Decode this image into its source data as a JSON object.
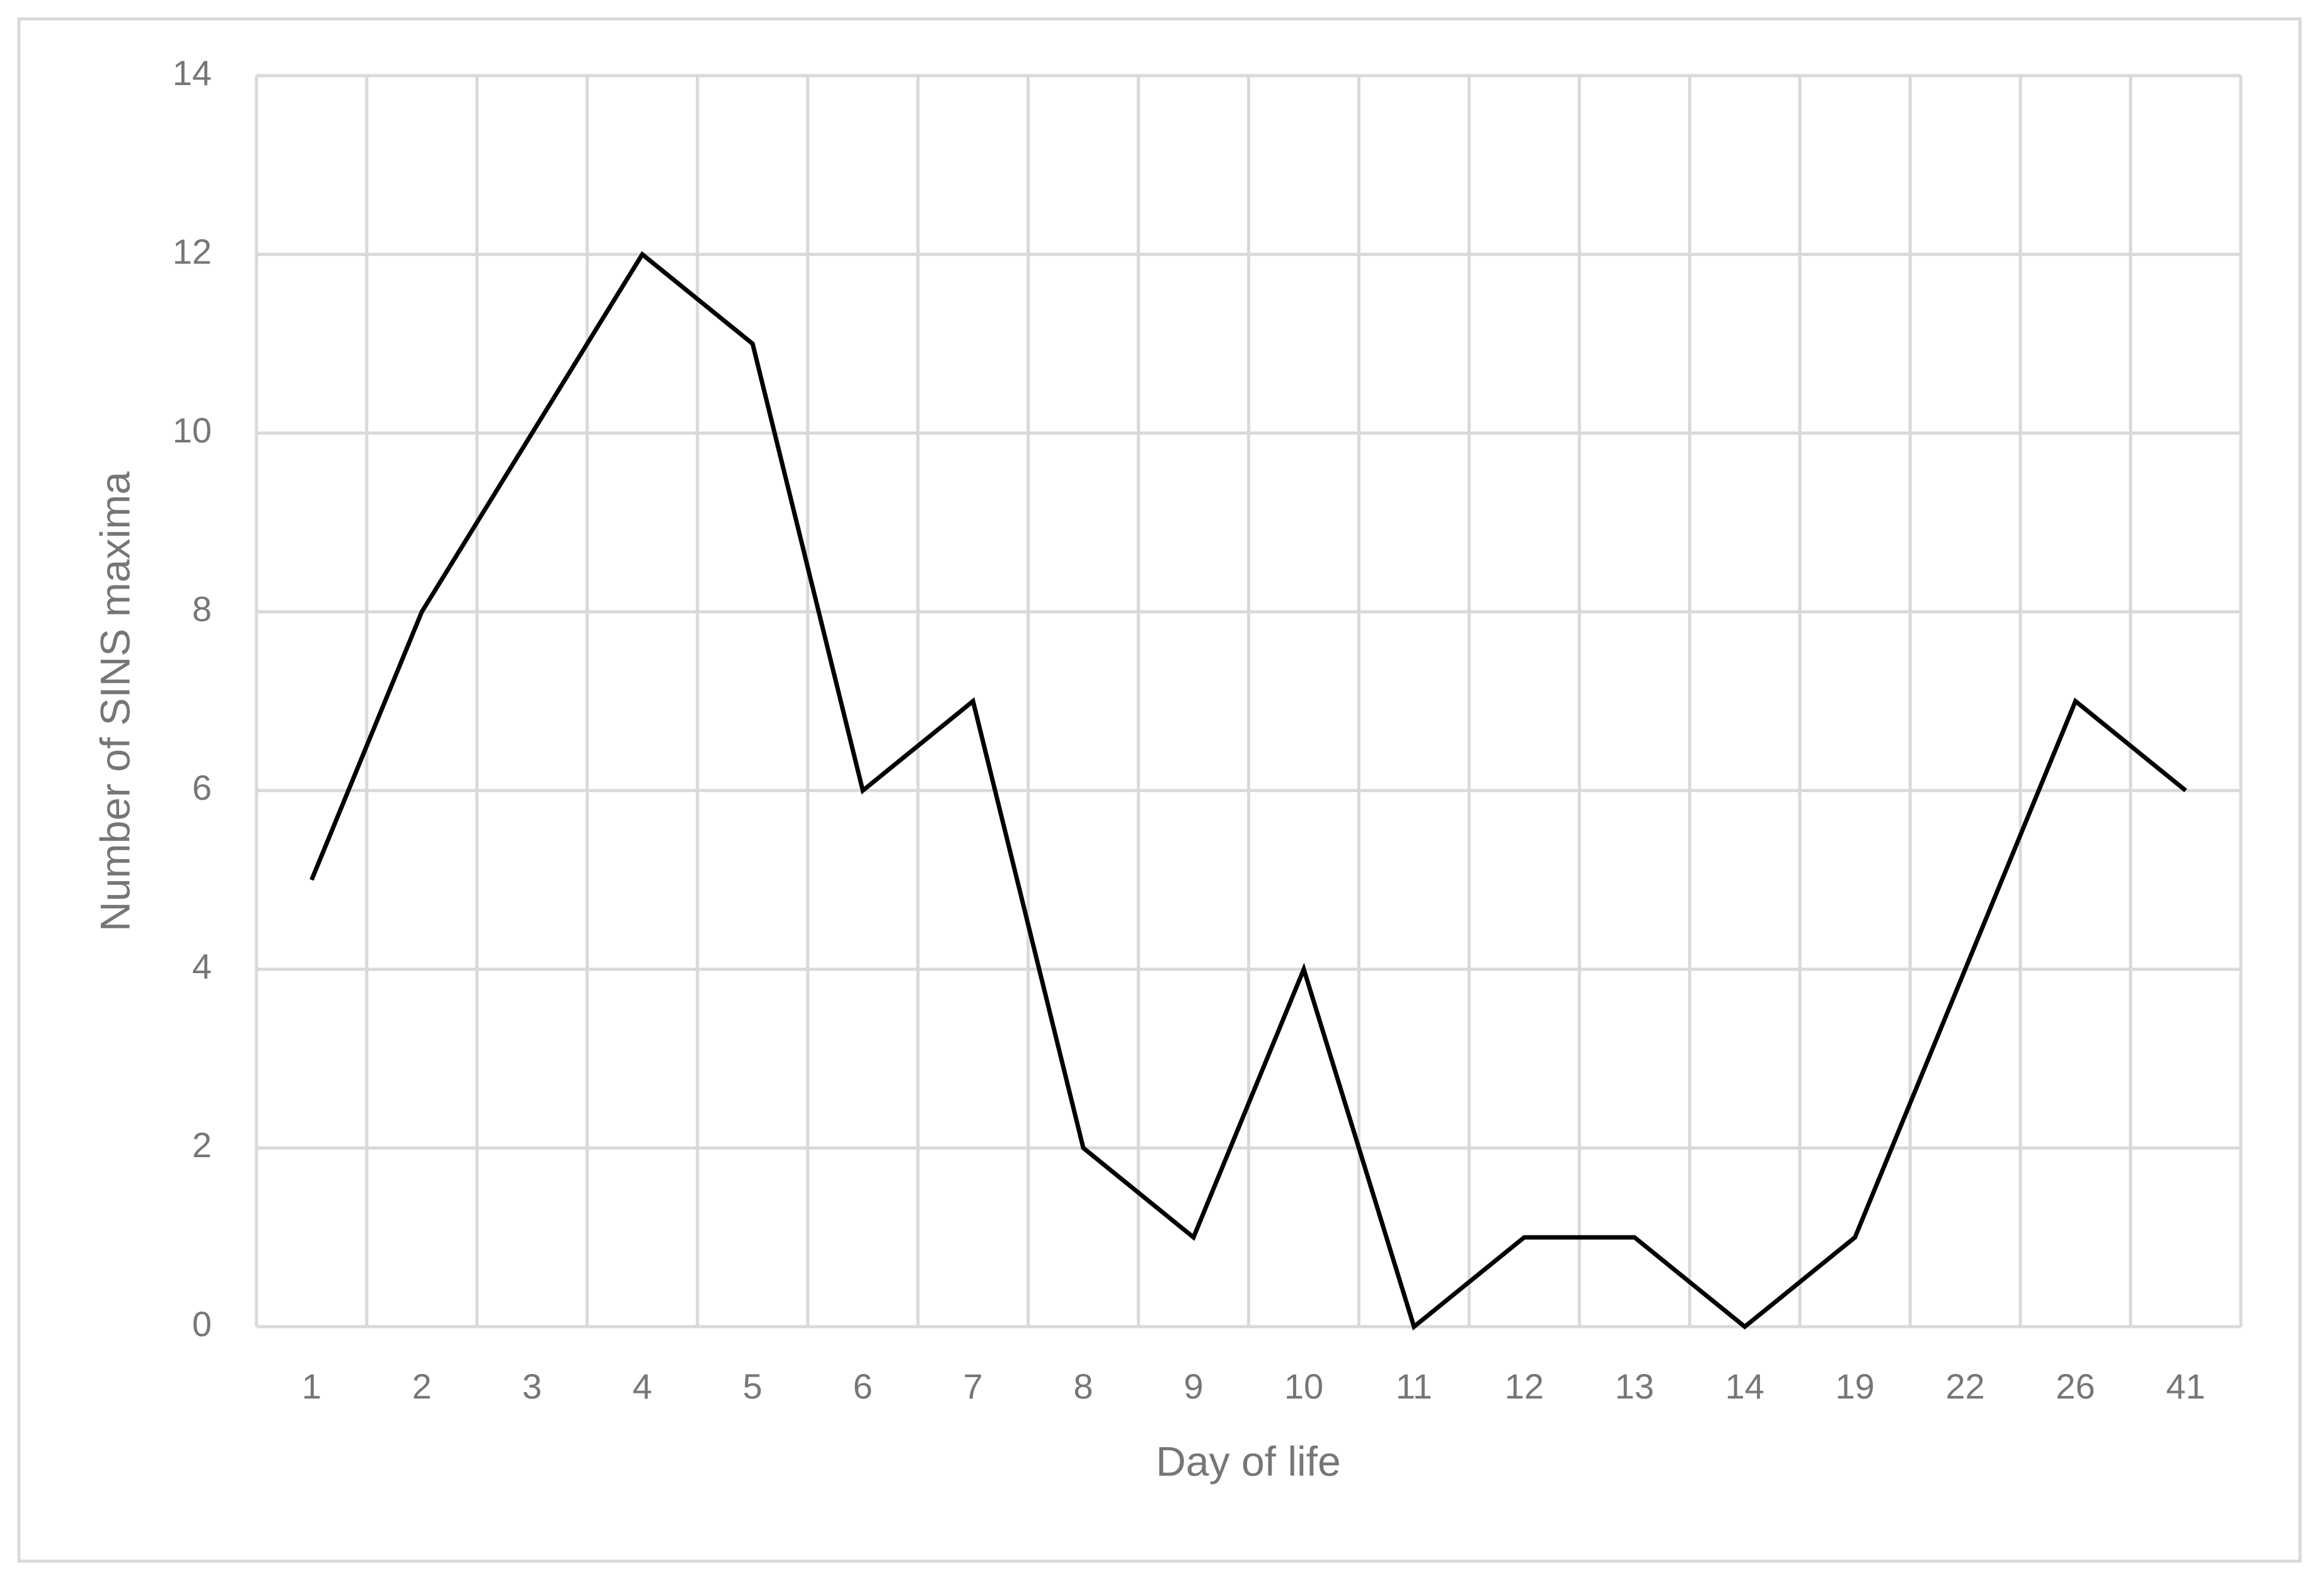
{
  "chart_data": {
    "type": "line",
    "x_label": "Day of life",
    "y_label": "Number of SINS maxima",
    "categories": [
      "1",
      "2",
      "3",
      "4",
      "5",
      "6",
      "7",
      "8",
      "9",
      "10",
      "11",
      "12",
      "13",
      "14",
      "19",
      "22",
      "26",
      "41"
    ],
    "values": [
      5,
      8,
      10,
      12,
      11,
      6,
      7,
      2,
      1,
      4,
      0,
      1,
      1,
      0,
      1,
      4,
      7,
      6
    ],
    "color": "#000000",
    "ylim": [
      0,
      14
    ],
    "yticks": [
      0,
      2,
      4,
      6,
      8,
      10,
      12,
      14
    ],
    "grid": true
  }
}
